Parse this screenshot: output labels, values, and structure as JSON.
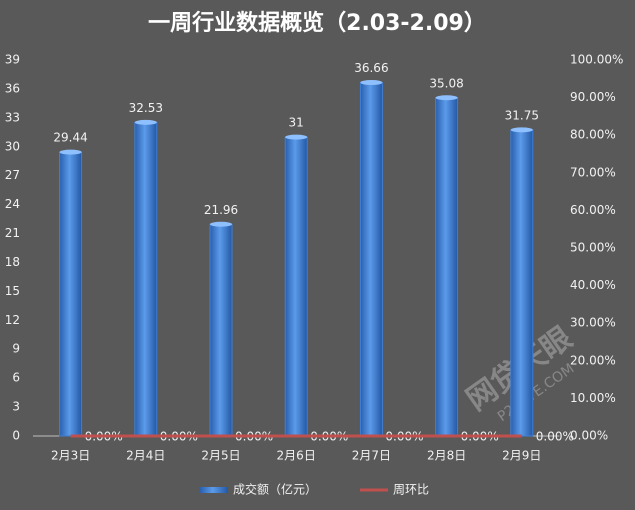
{
  "chart_data": {
    "type": "bar",
    "title": "一周行业数据概览（2.03-2.09）",
    "categories": [
      "2月3日",
      "2月4日",
      "2月5日",
      "2月6日",
      "2月7日",
      "2月8日",
      "2月9日"
    ],
    "series": [
      {
        "name": "成交额（亿元）",
        "color": "#3f7fd6",
        "type": "bar",
        "values": [
          29.44,
          32.53,
          21.96,
          31,
          36.66,
          35.08,
          31.75
        ]
      },
      {
        "name": "周环比",
        "color": "#c0504d",
        "type": "line",
        "axis": "y2",
        "values": [
          0,
          0,
          0,
          0,
          0,
          0,
          0
        ],
        "value_labels": [
          "0.00%",
          "0.00%",
          "0.00%",
          "0.00%",
          "0.00%",
          "0.00%",
          "0.00%"
        ]
      }
    ],
    "ylim": [
      0,
      39
    ],
    "yticks": [
      0,
      3,
      6,
      9,
      12,
      15,
      18,
      21,
      24,
      27,
      30,
      33,
      36,
      39
    ],
    "y2lim": [
      0,
      100
    ],
    "y2ticks": [
      {
        "value": 0,
        "label": "0.00%"
      },
      {
        "value": 10,
        "label": "10.00%"
      },
      {
        "value": 20,
        "label": "20.00%"
      },
      {
        "value": 30,
        "label": "30.00%"
      },
      {
        "value": 40,
        "label": "40.00%"
      },
      {
        "value": 50,
        "label": "50.00%"
      },
      {
        "value": 60,
        "label": "60.00%"
      },
      {
        "value": 70,
        "label": "70.00%"
      },
      {
        "value": 80,
        "label": "80.00%"
      },
      {
        "value": 90,
        "label": "90.00%"
      },
      {
        "value": 100,
        "label": "100.00%"
      }
    ],
    "legend": "bottom",
    "watermark": [
      "网贷天眼",
      "P2PEYE.COM"
    ]
  }
}
